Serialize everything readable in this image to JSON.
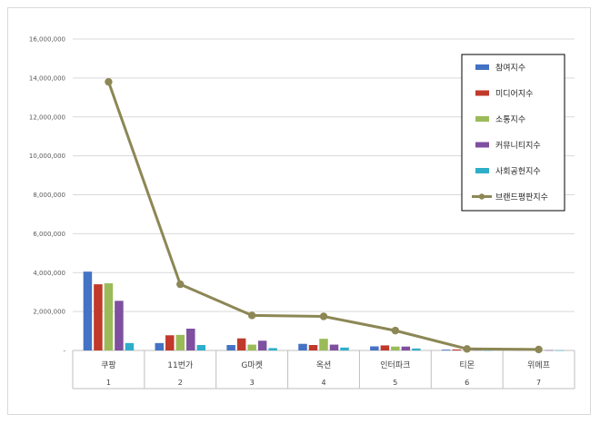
{
  "chart_data": {
    "type": "bar",
    "categories": [
      "쿠팡",
      "11번가",
      "G마켓",
      "옥션",
      "인터파크",
      "티몬",
      "위메프"
    ],
    "category_index": [
      "1",
      "2",
      "3",
      "4",
      "5",
      "6",
      "7"
    ],
    "ylim": [
      0,
      16000000
    ],
    "yticks": [
      0,
      2000000,
      4000000,
      6000000,
      8000000,
      10000000,
      12000000,
      14000000,
      16000000
    ],
    "ytick_labels": [
      "-",
      "2,000,000",
      "4,000,000",
      "6,000,000",
      "8,000,000",
      "10,000,000",
      "12,000,000",
      "14,000,000",
      "16,000,000"
    ],
    "grid": true,
    "legend_position": "top-right",
    "series": [
      {
        "name": "참여지수",
        "type": "bar",
        "color": "#4472c4",
        "values": [
          4050000,
          380000,
          280000,
          340000,
          210000,
          40000,
          20000
        ]
      },
      {
        "name": "미디어지수",
        "type": "bar",
        "color": "#c0392b",
        "values": [
          3400000,
          780000,
          620000,
          280000,
          260000,
          50000,
          30000
        ]
      },
      {
        "name": "소통지수",
        "type": "bar",
        "color": "#9bbb59",
        "values": [
          3450000,
          800000,
          300000,
          600000,
          200000,
          30000,
          20000
        ]
      },
      {
        "name": "커뮤니티지수",
        "type": "bar",
        "color": "#7f4fa0",
        "values": [
          2550000,
          1120000,
          500000,
          300000,
          200000,
          20000,
          15000
        ]
      },
      {
        "name": "사회공헌지수",
        "type": "bar",
        "color": "#2eaec9",
        "values": [
          380000,
          280000,
          120000,
          150000,
          100000,
          10000,
          10000
        ]
      },
      {
        "name": "브랜드평판지수",
        "type": "line",
        "color": "#8c8755",
        "values": [
          13800000,
          3400000,
          1800000,
          1750000,
          1020000,
          80000,
          50000
        ]
      }
    ]
  }
}
